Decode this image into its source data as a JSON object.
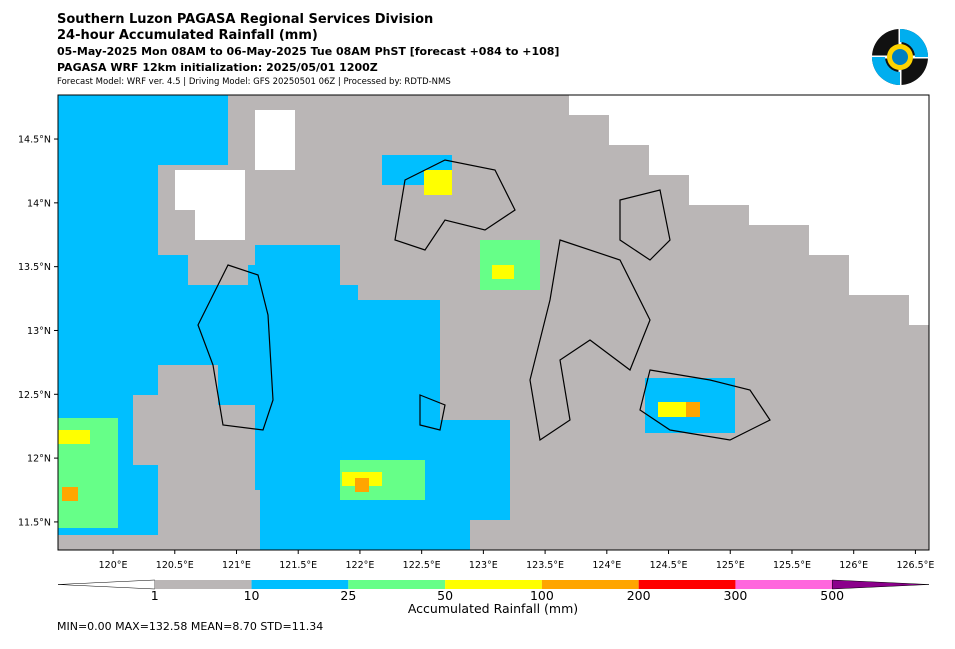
{
  "header": {
    "line1": "Southern Luzon PAGASA Regional Services Division",
    "line2": "24-hour Accumulated Rainfall (mm)",
    "line3": "05-May-2025 Mon 08AM to 06-May-2025 Tue 08AM PhST [forecast +084 to +108]",
    "line4": "PAGASA WRF 12km initialization: 2025/05/01 1200Z",
    "line5": "Forecast Model: WRF ver. 4.5 | Driving Model: GFS 20250501 06Z | Processed by: RDTD-NMS"
  },
  "map": {
    "xlim": [
      119.554,
      126.61
    ],
    "ylim": [
      11.28,
      14.845
    ],
    "xticks": [
      {
        "value": 120,
        "label": "120°E"
      },
      {
        "value": 120.5,
        "label": "120.5°E"
      },
      {
        "value": 121,
        "label": "121°E"
      },
      {
        "value": 121.5,
        "label": "121.5°E"
      },
      {
        "value": 122,
        "label": "122°E"
      },
      {
        "value": 122.5,
        "label": "122.5°E"
      },
      {
        "value": 123,
        "label": "123°E"
      },
      {
        "value": 123.5,
        "label": "123.5°E"
      },
      {
        "value": 124,
        "label": "124°E"
      },
      {
        "value": 124.5,
        "label": "124.5°E"
      },
      {
        "value": 125,
        "label": "125°E"
      },
      {
        "value": 125.5,
        "label": "125.5°E"
      },
      {
        "value": 126,
        "label": "126°E"
      },
      {
        "value": 126.5,
        "label": "126.5°E"
      }
    ],
    "yticks": [
      {
        "value": 11.5,
        "label": "11.5°N"
      },
      {
        "value": 12,
        "label": "12°N"
      },
      {
        "value": 12.5,
        "label": "12.5°N"
      },
      {
        "value": 13,
        "label": "13°N"
      },
      {
        "value": 13.5,
        "label": "13.5°N"
      },
      {
        "value": 14,
        "label": "14°N"
      },
      {
        "value": 14.5,
        "label": "14.5°N"
      }
    ]
  },
  "colorbar": {
    "label": "Accumulated Rainfall (mm)",
    "levels": [
      1,
      10,
      25,
      50,
      100,
      200,
      300,
      500
    ],
    "colors": [
      "#ffffff",
      "#bab6b6",
      "#00bfff",
      "#66ff88",
      "#ffff00",
      "#ffa500",
      "#ff0000",
      "#ff66dd",
      "#8b008b"
    ]
  },
  "stats": "MIN=0.00   MAX=132.58   MEAN=8.70   STD=11.34"
}
